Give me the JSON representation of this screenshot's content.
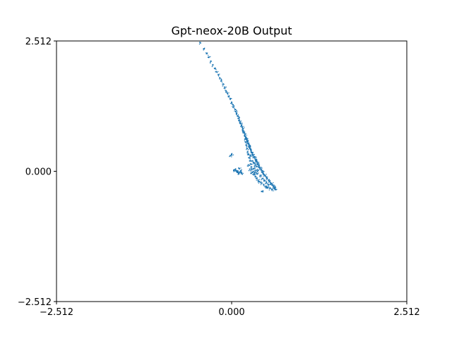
{
  "chart_data": {
    "type": "scatter",
    "title": "Gpt-neox-20B Output",
    "xlabel": "",
    "ylabel": "",
    "xlim": [
      -2.512,
      2.512
    ],
    "ylim": [
      -2.512,
      2.512
    ],
    "xticks": [
      "−2.512",
      "0.000",
      "2.512"
    ],
    "xtick_values": [
      -2.512,
      0.0,
      2.512
    ],
    "yticks": [
      "2.512",
      "0.000",
      "−2.512"
    ],
    "ytick_values": [
      2.512,
      0.0,
      -2.512
    ],
    "grid": false,
    "legend": "none",
    "marker_color": "#1f77b4",
    "series": [
      {
        "points": [
          [
            -0.45,
            2.48
          ],
          [
            -0.4,
            2.36
          ],
          [
            -0.36,
            2.27
          ],
          [
            -0.33,
            2.2
          ],
          [
            -0.3,
            2.12
          ],
          [
            -0.27,
            2.05
          ],
          [
            -0.24,
            1.98
          ],
          [
            -0.22,
            1.92
          ],
          [
            -0.19,
            1.86
          ],
          [
            -0.17,
            1.8
          ],
          [
            -0.15,
            1.74
          ],
          [
            -0.12,
            1.68
          ],
          [
            -0.1,
            1.62
          ],
          [
            -0.08,
            1.55
          ],
          [
            -0.06,
            1.5
          ],
          [
            -0.04,
            1.44
          ],
          [
            -0.02,
            1.39
          ],
          [
            0.0,
            1.33
          ],
          [
            0.02,
            1.28
          ],
          [
            0.03,
            1.24
          ],
          [
            0.05,
            1.19
          ],
          [
            0.06,
            1.15
          ],
          [
            0.07,
            1.1
          ],
          [
            0.09,
            1.06
          ],
          [
            0.1,
            1.02
          ],
          [
            0.11,
            0.98
          ],
          [
            0.12,
            0.95
          ],
          [
            0.13,
            0.92
          ],
          [
            0.14,
            0.88
          ],
          [
            0.15,
            0.85
          ],
          [
            0.16,
            0.82
          ],
          [
            0.16,
            0.79
          ],
          [
            0.17,
            0.76
          ],
          [
            0.18,
            0.74
          ],
          [
            0.19,
            0.71
          ],
          [
            0.19,
            0.68
          ],
          [
            0.2,
            0.66
          ],
          [
            0.21,
            0.63
          ],
          [
            0.22,
            0.61
          ],
          [
            0.22,
            0.58
          ],
          [
            0.23,
            0.56
          ],
          [
            0.24,
            0.53
          ],
          [
            0.25,
            0.51
          ],
          [
            0.25,
            0.48
          ],
          [
            0.26,
            0.46
          ],
          [
            0.27,
            0.43
          ],
          [
            0.28,
            0.41
          ],
          [
            0.28,
            0.38
          ],
          [
            0.29,
            0.36
          ],
          [
            0.3,
            0.33
          ],
          [
            0.31,
            0.31
          ],
          [
            0.32,
            0.28
          ],
          [
            0.33,
            0.26
          ],
          [
            0.34,
            0.23
          ],
          [
            0.35,
            0.21
          ],
          [
            0.36,
            0.18
          ],
          [
            0.37,
            0.16
          ],
          [
            0.38,
            0.13
          ],
          [
            0.39,
            0.11
          ],
          [
            0.4,
            0.08
          ],
          [
            0.41,
            0.06
          ],
          [
            0.42,
            0.03
          ],
          [
            0.43,
            0.01
          ],
          [
            0.44,
            -0.02
          ],
          [
            0.45,
            -0.04
          ],
          [
            0.47,
            -0.07
          ],
          [
            0.48,
            -0.09
          ],
          [
            0.5,
            -0.12
          ],
          [
            0.51,
            -0.14
          ],
          [
            0.53,
            -0.17
          ],
          [
            0.54,
            -0.19
          ],
          [
            0.56,
            -0.22
          ],
          [
            0.57,
            -0.24
          ],
          [
            0.59,
            -0.27
          ],
          [
            0.6,
            -0.29
          ],
          [
            0.61,
            -0.31
          ],
          [
            0.62,
            -0.33
          ],
          [
            0.63,
            -0.35
          ],
          [
            0.19,
            0.62
          ],
          [
            0.2,
            0.56
          ],
          [
            0.21,
            0.5
          ],
          [
            0.22,
            0.44
          ],
          [
            0.23,
            0.38
          ],
          [
            0.24,
            0.32
          ],
          [
            0.25,
            0.26
          ],
          [
            0.26,
            0.2
          ],
          [
            0.27,
            0.14
          ],
          [
            0.28,
            0.08
          ],
          [
            0.29,
            0.03
          ],
          [
            0.3,
            -0.02
          ],
          [
            0.32,
            -0.06
          ],
          [
            0.34,
            -0.1
          ],
          [
            0.36,
            -0.14
          ],
          [
            0.38,
            -0.17
          ],
          [
            0.4,
            -0.2
          ],
          [
            0.43,
            -0.23
          ],
          [
            0.46,
            -0.26
          ],
          [
            0.49,
            -0.29
          ],
          [
            0.52,
            -0.31
          ],
          [
            0.55,
            -0.33
          ],
          [
            0.58,
            -0.35
          ],
          [
            0.27,
            0.3
          ],
          [
            0.3,
            0.2
          ],
          [
            0.33,
            0.1
          ],
          [
            0.35,
            0.02
          ],
          [
            0.37,
            -0.05
          ],
          [
            0.31,
            0.05
          ],
          [
            0.33,
            -0.02
          ],
          [
            0.38,
            0.02
          ],
          [
            0.41,
            -0.08
          ],
          [
            0.44,
            -0.14
          ],
          [
            0.47,
            -0.18
          ],
          [
            0.5,
            -0.22
          ],
          [
            0.53,
            -0.26
          ],
          [
            0.24,
            0.12
          ],
          [
            0.26,
            0.04
          ],
          [
            0.28,
            -0.04
          ],
          [
            0.32,
            0.15
          ],
          [
            0.36,
            0.09
          ],
          [
            0.03,
            0.02
          ],
          [
            0.05,
            0.03
          ],
          [
            0.07,
            0.01
          ],
          [
            0.09,
            -0.01
          ],
          [
            0.1,
            -0.03
          ],
          [
            0.12,
            -0.02
          ],
          [
            0.14,
            -0.04
          ],
          [
            0.11,
            0.05
          ],
          [
            0.08,
            -0.02
          ],
          [
            0.13,
            0.01
          ],
          [
            0.0,
            0.33
          ],
          [
            0.43,
            -0.39
          ],
          [
            0.5,
            -0.3
          ],
          [
            -0.02,
            0.3
          ]
        ]
      }
    ]
  }
}
